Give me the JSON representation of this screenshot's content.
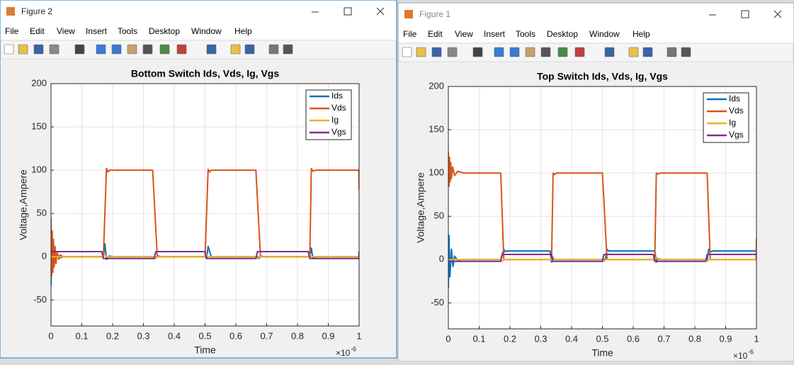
{
  "windows": [
    {
      "title": "Figure 2",
      "menu": [
        "File",
        "Edit",
        "View",
        "Insert",
        "Tools",
        "Desktop",
        "Window",
        "Help"
      ]
    },
    {
      "title": "Figure 1",
      "menu": [
        "File",
        "Edit",
        "View",
        "Insert",
        "Tools",
        "Desktop",
        "Window",
        "Help"
      ]
    }
  ],
  "chart_data": [
    {
      "type": "line",
      "title": "Bottom Switch Ids, Vds, Ig, Vgs",
      "xlabel": "Time",
      "ylabel": "Voltage,Ampere",
      "x_exponent": {
        "base": "×10",
        "power": "-6"
      },
      "xlim": [
        0,
        1
      ],
      "ylim": [
        -80,
        200
      ],
      "xticks": [
        0,
        0.1,
        0.2,
        0.3,
        0.4,
        0.5,
        0.6,
        0.7,
        0.8,
        0.9,
        1
      ],
      "yticks": [
        -50,
        0,
        50,
        100,
        150,
        200
      ],
      "grid": true,
      "legend": "upper right",
      "series": [
        {
          "name": "Ids",
          "color": "#0072bd",
          "x": [
            0,
            0.002,
            0.005,
            0.01,
            0.015,
            0.02,
            0.03,
            0.04,
            0.17,
            0.175,
            0.18,
            0.19,
            0.2,
            0.33,
            0.34,
            0.345,
            0.36,
            0.5,
            0.505,
            0.51,
            0.52,
            0.67,
            0.675,
            0.68,
            0.69,
            0.84,
            0.845,
            0.85,
            0.86,
            1
          ],
          "values": [
            -33,
            15,
            -12,
            8,
            -5,
            3,
            -1,
            0,
            0,
            15,
            -3,
            1,
            0,
            0,
            -2,
            1,
            0,
            0,
            -2,
            12,
            0,
            0,
            -2,
            1,
            0,
            0,
            10,
            -2,
            0,
            0
          ]
        },
        {
          "name": "Vds",
          "color": "#d95319",
          "x": [
            0,
            0.002,
            0.004,
            0.006,
            0.008,
            0.01,
            0.013,
            0.016,
            0.02,
            0.025,
            0.03,
            0.04,
            0.17,
            0.18,
            0.185,
            0.19,
            0.2,
            0.33,
            0.345,
            0.5,
            0.51,
            0.515,
            0.52,
            0.665,
            0.68,
            0.84,
            0.845,
            0.85,
            0.86,
            0.999,
            1
          ],
          "values": [
            45,
            -22,
            30,
            -18,
            20,
            -12,
            12,
            -8,
            6,
            -3,
            2,
            0,
            0,
            102,
            98,
            100,
            100,
            100,
            0,
            0,
            101,
            98,
            100,
            100,
            0,
            0,
            102,
            99,
            100,
            100,
            77
          ]
        },
        {
          "name": "Ig",
          "color": "#edb120",
          "x": [
            0,
            0.17,
            0.175,
            0.18,
            0.335,
            0.34,
            0.345,
            0.5,
            0.505,
            0.51,
            0.665,
            0.67,
            0.675,
            0.835,
            0.84,
            0.845,
            1
          ],
          "values": [
            0,
            0,
            3,
            0,
            0,
            -2,
            0,
            0,
            3,
            0,
            0,
            -2,
            0,
            0,
            3,
            0,
            0
          ]
        },
        {
          "name": "Vgs",
          "color": "#7e2f8e",
          "x": [
            0,
            0.165,
            0.17,
            0.335,
            0.34,
            0.5,
            0.505,
            0.665,
            0.67,
            0.835,
            0.84,
            0.999,
            1
          ],
          "values": [
            6,
            6,
            -2,
            -2,
            6,
            6,
            -2,
            -2,
            6,
            6,
            -2,
            -2,
            6
          ]
        }
      ]
    },
    {
      "type": "line",
      "title": "Top Switch Ids, Vds, Ig, Vgs",
      "xlabel": "Time",
      "ylabel": "Voltage,Ampere",
      "x_exponent": {
        "base": "×10",
        "power": "-6"
      },
      "xlim": [
        0,
        1
      ],
      "ylim": [
        -80,
        200
      ],
      "xticks": [
        0,
        0.1,
        0.2,
        0.3,
        0.4,
        0.5,
        0.6,
        0.7,
        0.8,
        0.9,
        1
      ],
      "yticks": [
        -50,
        0,
        50,
        100,
        150,
        200
      ],
      "grid": true,
      "legend": "upper right",
      "series": [
        {
          "name": "Ids",
          "color": "#0072bd",
          "x": [
            0,
            0.002,
            0.005,
            0.01,
            0.015,
            0.02,
            0.03,
            0.04,
            0.17,
            0.18,
            0.185,
            0.19,
            0.33,
            0.335,
            0.34,
            0.35,
            0.51,
            0.515,
            0.52,
            0.67,
            0.675,
            0.68,
            0.69,
            0.84,
            0.845,
            0.85,
            0.86,
            1
          ],
          "values": [
            -33,
            28,
            -20,
            12,
            -8,
            4,
            -1,
            0,
            0,
            12,
            9,
            10,
            10,
            -3,
            1,
            0,
            0,
            12,
            10,
            10,
            -3,
            1,
            0,
            0,
            12,
            9,
            10,
            10
          ]
        },
        {
          "name": "Vds",
          "color": "#d95319",
          "x": [
            0,
            0.002,
            0.004,
            0.006,
            0.008,
            0.01,
            0.014,
            0.02,
            0.03,
            0.05,
            0.17,
            0.18,
            0.335,
            0.34,
            0.345,
            0.35,
            0.5,
            0.515,
            0.67,
            0.675,
            0.68,
            0.69,
            0.84,
            0.85,
            0.999,
            1
          ],
          "values": [
            125,
            85,
            118,
            90,
            112,
            94,
            107,
            97,
            102,
            100,
            100,
            0,
            0,
            100,
            98,
            100,
            100,
            0,
            0,
            100,
            99,
            100,
            100,
            0,
            0,
            24
          ]
        },
        {
          "name": "Ig",
          "color": "#edb120",
          "x": [
            0,
            0.17,
            0.175,
            0.18,
            0.335,
            0.34,
            0.345,
            0.5,
            0.505,
            0.51,
            0.67,
            0.675,
            0.68,
            0.835,
            0.84,
            0.845,
            1
          ],
          "values": [
            0,
            0,
            -2,
            0,
            0,
            3,
            0,
            0,
            -2,
            0,
            0,
            3,
            0,
            0,
            -2,
            0,
            0
          ]
        },
        {
          "name": "Vgs",
          "color": "#7e2f8e",
          "x": [
            0,
            0.17,
            0.175,
            0.335,
            0.34,
            0.5,
            0.505,
            0.665,
            0.67,
            0.835,
            0.84,
            1
          ],
          "values": [
            -2,
            -2,
            6,
            6,
            -2,
            -2,
            6,
            6,
            -2,
            -2,
            6,
            6
          ]
        }
      ]
    }
  ]
}
